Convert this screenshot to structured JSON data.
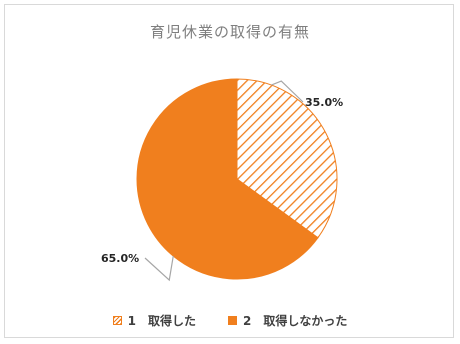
{
  "chart_data": {
    "type": "pie",
    "title": "育児休業の取得の有無",
    "categories": [
      "1　取得した",
      "2　取得しなかった"
    ],
    "values": [
      35.0,
      65.0
    ],
    "data_labels": [
      "35.0%",
      "65.0%"
    ],
    "legend_position": "bottom",
    "colors": {
      "slice_1": "#f07f1e",
      "slice_1_fill": "hatched",
      "slice_2": "#f07f1e",
      "slice_2_fill": "solid",
      "leader_line": "#a6a6a6",
      "label_text": "#262626",
      "title_text": "#7f7f7f"
    }
  }
}
